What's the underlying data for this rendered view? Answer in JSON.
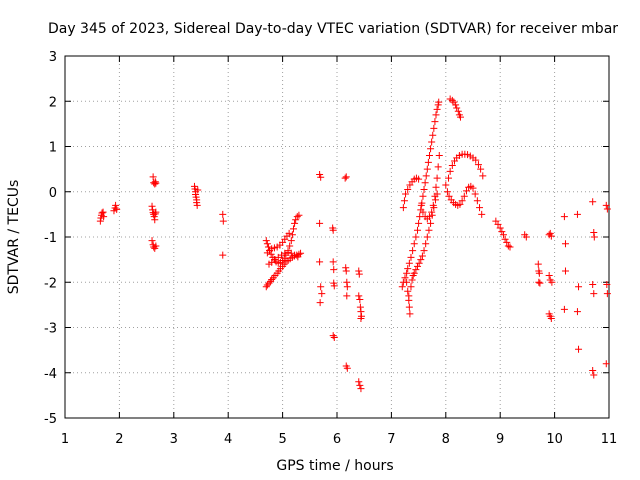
{
  "chart_data": {
    "type": "scatter",
    "title": "Day 345 of 2023, Sidereal Day-to-day VTEC variation (SDTVAR) for receiver mbar",
    "xlabel": "GPS time / hours",
    "ylabel": "SDTVAR / TECUs",
    "xlim": [
      1,
      11
    ],
    "ylim": [
      -5,
      3
    ],
    "xticks": [
      "1",
      "2",
      "3",
      "4",
      "5",
      "6",
      "7",
      "8",
      "9",
      "10",
      "11"
    ],
    "yticks": [
      "-5",
      "-4",
      "-3",
      "-2",
      "-1",
      "0",
      "1",
      "2",
      "3"
    ],
    "grid": true,
    "marker": "+",
    "series": [
      {
        "name": "SDTVAR",
        "color": "#ff0000",
        "points": [
          [
            1.65,
            -0.65
          ],
          [
            1.66,
            -0.58
          ],
          [
            1.67,
            -0.52
          ],
          [
            1.68,
            -0.47
          ],
          [
            1.7,
            -0.45
          ],
          [
            1.71,
            -0.55
          ],
          [
            1.9,
            -0.42
          ],
          [
            1.92,
            -0.36
          ],
          [
            1.93,
            -0.3
          ],
          [
            1.95,
            -0.39
          ],
          [
            2.62,
            0.33
          ],
          [
            2.63,
            0.2
          ],
          [
            2.65,
            0.17
          ],
          [
            2.66,
            0.22
          ],
          [
            2.67,
            0.19
          ],
          [
            2.6,
            -0.32
          ],
          [
            2.61,
            -0.4
          ],
          [
            2.62,
            -0.46
          ],
          [
            2.63,
            -0.5
          ],
          [
            2.64,
            -0.55
          ],
          [
            2.65,
            -0.62
          ],
          [
            2.66,
            -0.49
          ],
          [
            2.67,
            -0.45
          ],
          [
            2.6,
            -1.08
          ],
          [
            2.62,
            -1.17
          ],
          [
            2.63,
            -1.22
          ],
          [
            2.65,
            -1.25
          ],
          [
            2.67,
            -1.2
          ],
          [
            3.38,
            0.12
          ],
          [
            3.39,
            0.06
          ],
          [
            3.4,
            0.0
          ],
          [
            3.4,
            -0.06
          ],
          [
            3.41,
            -0.12
          ],
          [
            3.42,
            -0.18
          ],
          [
            3.42,
            -0.24
          ],
          [
            3.43,
            -0.3
          ],
          [
            3.44,
            0.04
          ],
          [
            3.9,
            -0.5
          ],
          [
            3.91,
            -0.65
          ],
          [
            3.9,
            -1.4
          ],
          [
            4.7,
            -2.1
          ],
          [
            4.72,
            -2.06
          ],
          [
            4.75,
            -2.02
          ],
          [
            4.78,
            -1.98
          ],
          [
            4.8,
            -1.94
          ],
          [
            4.83,
            -1.9
          ],
          [
            4.86,
            -1.85
          ],
          [
            4.9,
            -1.8
          ],
          [
            4.93,
            -1.75
          ],
          [
            4.96,
            -1.7
          ],
          [
            5.0,
            -1.65
          ],
          [
            5.03,
            -1.6
          ],
          [
            5.06,
            -1.55
          ],
          [
            5.1,
            -1.52
          ],
          [
            5.14,
            -1.48
          ],
          [
            5.18,
            -1.45
          ],
          [
            5.22,
            -1.42
          ],
          [
            5.26,
            -1.4
          ],
          [
            5.3,
            -1.38
          ],
          [
            5.33,
            -1.36
          ],
          [
            4.7,
            -1.08
          ],
          [
            4.72,
            -1.15
          ],
          [
            4.74,
            -1.22
          ],
          [
            4.76,
            -1.3
          ],
          [
            4.79,
            -1.38
          ],
          [
            4.82,
            -1.45
          ],
          [
            4.85,
            -1.5
          ],
          [
            4.88,
            -1.55
          ],
          [
            4.92,
            -1.58
          ],
          [
            4.96,
            -1.56
          ],
          [
            5.0,
            -1.52
          ],
          [
            5.03,
            -1.47
          ],
          [
            5.06,
            -1.4
          ],
          [
            5.1,
            -1.3
          ],
          [
            5.13,
            -1.2
          ],
          [
            5.16,
            -1.08
          ],
          [
            5.18,
            -0.95
          ],
          [
            5.2,
            -0.82
          ],
          [
            5.22,
            -0.7
          ],
          [
            5.24,
            -0.62
          ],
          [
            5.27,
            -0.55
          ],
          [
            5.3,
            -0.52
          ],
          [
            4.72,
            -1.35
          ],
          [
            4.76,
            -1.3
          ],
          [
            4.8,
            -1.26
          ],
          [
            4.85,
            -1.24
          ],
          [
            4.9,
            -1.22
          ],
          [
            4.95,
            -1.18
          ],
          [
            5.0,
            -1.12
          ],
          [
            5.04,
            -1.05
          ],
          [
            5.08,
            -0.98
          ],
          [
            5.12,
            -0.92
          ],
          [
            4.75,
            -1.6
          ],
          [
            4.8,
            -1.56
          ],
          [
            4.86,
            -1.5
          ],
          [
            4.92,
            -1.45
          ],
          [
            4.98,
            -1.4
          ],
          [
            5.04,
            -1.36
          ],
          [
            5.1,
            -1.34
          ],
          [
            5.16,
            -1.36
          ],
          [
            5.22,
            -1.4
          ],
          [
            5.28,
            -1.44
          ],
          [
            5.68,
            0.38
          ],
          [
            5.7,
            0.32
          ],
          [
            5.68,
            -0.7
          ],
          [
            5.68,
            -1.55
          ],
          [
            5.7,
            -2.1
          ],
          [
            5.72,
            -2.25
          ],
          [
            5.69,
            -2.45
          ],
          [
            5.92,
            -0.8
          ],
          [
            5.93,
            -0.85
          ],
          [
            5.93,
            -1.55
          ],
          [
            5.94,
            -1.72
          ],
          [
            5.94,
            -2.02
          ],
          [
            5.95,
            -2.08
          ],
          [
            5.93,
            -3.18
          ],
          [
            5.95,
            -3.22
          ],
          [
            6.15,
            0.3
          ],
          [
            6.17,
            0.33
          ],
          [
            6.16,
            -1.68
          ],
          [
            6.17,
            -1.75
          ],
          [
            6.18,
            -2.0
          ],
          [
            6.19,
            -2.1
          ],
          [
            6.18,
            -2.3
          ],
          [
            6.17,
            -3.85
          ],
          [
            6.19,
            -3.9
          ],
          [
            6.4,
            -1.75
          ],
          [
            6.41,
            -1.82
          ],
          [
            6.4,
            -2.3
          ],
          [
            6.42,
            -2.38
          ],
          [
            6.43,
            -2.55
          ],
          [
            6.44,
            -2.65
          ],
          [
            6.45,
            -2.75
          ],
          [
            6.44,
            -2.8
          ],
          [
            6.4,
            -4.2
          ],
          [
            6.42,
            -4.28
          ],
          [
            6.44,
            -4.35
          ],
          [
            7.2,
            -2.1
          ],
          [
            7.22,
            -2.0
          ],
          [
            7.25,
            -1.9
          ],
          [
            7.28,
            -1.8
          ],
          [
            7.3,
            -1.7
          ],
          [
            7.33,
            -1.58
          ],
          [
            7.36,
            -1.45
          ],
          [
            7.39,
            -1.3
          ],
          [
            7.42,
            -1.15
          ],
          [
            7.45,
            -1.0
          ],
          [
            7.48,
            -0.85
          ],
          [
            7.5,
            -0.7
          ],
          [
            7.52,
            -0.55
          ],
          [
            7.54,
            -0.4
          ],
          [
            7.56,
            -0.25
          ],
          [
            7.58,
            -0.1
          ],
          [
            7.6,
            0.05
          ],
          [
            7.62,
            0.2
          ],
          [
            7.64,
            0.35
          ],
          [
            7.66,
            0.5
          ],
          [
            7.68,
            0.65
          ],
          [
            7.7,
            0.8
          ],
          [
            7.72,
            0.95
          ],
          [
            7.74,
            1.1
          ],
          [
            7.76,
            1.25
          ],
          [
            7.78,
            1.4
          ],
          [
            7.8,
            1.55
          ],
          [
            7.82,
            1.7
          ],
          [
            7.84,
            1.82
          ],
          [
            7.86,
            1.92
          ],
          [
            7.87,
            1.98
          ],
          [
            7.28,
            -2.0
          ],
          [
            7.3,
            -2.2
          ],
          [
            7.32,
            -2.4
          ],
          [
            7.33,
            -2.55
          ],
          [
            7.34,
            -2.7
          ],
          [
            7.32,
            -2.3
          ],
          [
            7.36,
            -2.1
          ],
          [
            7.38,
            -1.95
          ],
          [
            7.4,
            -1.85
          ],
          [
            7.42,
            -1.8
          ],
          [
            7.45,
            -1.72
          ],
          [
            7.48,
            -1.65
          ],
          [
            7.51,
            -1.58
          ],
          [
            7.54,
            -1.5
          ],
          [
            7.57,
            -1.42
          ],
          [
            7.6,
            -1.3
          ],
          [
            7.63,
            -1.15
          ],
          [
            7.66,
            -1.0
          ],
          [
            7.69,
            -0.85
          ],
          [
            7.72,
            -0.7
          ],
          [
            7.75,
            -0.52
          ],
          [
            7.78,
            -0.35
          ],
          [
            7.81,
            -0.18
          ],
          [
            7.84,
            -0.05
          ],
          [
            7.22,
            -0.35
          ],
          [
            7.24,
            -0.2
          ],
          [
            7.26,
            -0.05
          ],
          [
            7.3,
            0.05
          ],
          [
            7.34,
            0.15
          ],
          [
            7.38,
            0.22
          ],
          [
            7.42,
            0.28
          ],
          [
            7.46,
            0.3
          ],
          [
            7.5,
            0.28
          ],
          [
            7.55,
            -0.3
          ],
          [
            7.58,
            -0.45
          ],
          [
            7.62,
            -0.55
          ],
          [
            7.66,
            -0.6
          ],
          [
            7.7,
            -0.55
          ],
          [
            7.74,
            -0.45
          ],
          [
            7.77,
            -0.3
          ],
          [
            7.8,
            -0.1
          ],
          [
            7.82,
            0.1
          ],
          [
            7.84,
            0.3
          ],
          [
            7.86,
            0.55
          ],
          [
            7.88,
            0.8
          ],
          [
            8.08,
            2.05
          ],
          [
            8.12,
            2.02
          ],
          [
            8.15,
            1.98
          ],
          [
            8.18,
            1.92
          ],
          [
            8.2,
            1.85
          ],
          [
            8.23,
            1.78
          ],
          [
            8.25,
            1.7
          ],
          [
            8.27,
            1.65
          ],
          [
            8.05,
            0.3
          ],
          [
            8.08,
            0.45
          ],
          [
            8.12,
            0.58
          ],
          [
            8.16,
            0.68
          ],
          [
            8.2,
            0.75
          ],
          [
            8.25,
            0.8
          ],
          [
            8.3,
            0.83
          ],
          [
            8.35,
            0.83
          ],
          [
            8.4,
            0.82
          ],
          [
            8.45,
            0.79
          ],
          [
            8.5,
            0.75
          ],
          [
            8.55,
            0.7
          ],
          [
            8.6,
            0.6
          ],
          [
            8.64,
            0.5
          ],
          [
            8.68,
            0.35
          ],
          [
            8.0,
            0.15
          ],
          [
            8.03,
            0.0
          ],
          [
            8.06,
            -0.1
          ],
          [
            8.1,
            -0.18
          ],
          [
            8.14,
            -0.24
          ],
          [
            8.18,
            -0.28
          ],
          [
            8.22,
            -0.3
          ],
          [
            8.26,
            -0.28
          ],
          [
            8.3,
            -0.2
          ],
          [
            8.34,
            -0.1
          ],
          [
            8.38,
            0.02
          ],
          [
            8.42,
            0.1
          ],
          [
            8.46,
            0.12
          ],
          [
            8.5,
            0.08
          ],
          [
            8.54,
            -0.05
          ],
          [
            8.58,
            -0.2
          ],
          [
            8.62,
            -0.35
          ],
          [
            8.66,
            -0.5
          ],
          [
            8.92,
            -0.65
          ],
          [
            8.96,
            -0.72
          ],
          [
            9.0,
            -0.8
          ],
          [
            9.03,
            -0.88
          ],
          [
            9.06,
            -0.95
          ],
          [
            9.09,
            -1.05
          ],
          [
            9.12,
            -1.12
          ],
          [
            9.15,
            -1.2
          ],
          [
            9.18,
            -1.22
          ],
          [
            9.45,
            -0.95
          ],
          [
            9.48,
            -1.0
          ],
          [
            9.7,
            -1.6
          ],
          [
            9.71,
            -1.75
          ],
          [
            9.72,
            -1.8
          ],
          [
            9.71,
            -2.0
          ],
          [
            9.73,
            -2.02
          ],
          [
            9.9,
            -0.95
          ],
          [
            9.92,
            -0.92
          ],
          [
            9.94,
            -0.98
          ],
          [
            9.9,
            -1.85
          ],
          [
            9.92,
            -1.95
          ],
          [
            9.95,
            -2.0
          ],
          [
            9.9,
            -2.7
          ],
          [
            9.92,
            -2.75
          ],
          [
            9.94,
            -2.8
          ],
          [
            10.18,
            -0.55
          ],
          [
            10.2,
            -1.15
          ],
          [
            10.2,
            -1.75
          ],
          [
            10.18,
            -2.6
          ],
          [
            10.42,
            -0.5
          ],
          [
            10.44,
            -2.1
          ],
          [
            10.42,
            -2.65
          ],
          [
            10.44,
            -3.48
          ],
          [
            10.7,
            -0.22
          ],
          [
            10.72,
            -0.9
          ],
          [
            10.73,
            -1.0
          ],
          [
            10.7,
            -2.05
          ],
          [
            10.72,
            -2.25
          ],
          [
            10.7,
            -3.95
          ],
          [
            10.72,
            -4.05
          ],
          [
            10.95,
            -0.3
          ],
          [
            10.97,
            -0.38
          ],
          [
            10.96,
            -2.05
          ],
          [
            10.97,
            -2.25
          ],
          [
            10.95,
            -3.8
          ]
        ]
      }
    ]
  }
}
